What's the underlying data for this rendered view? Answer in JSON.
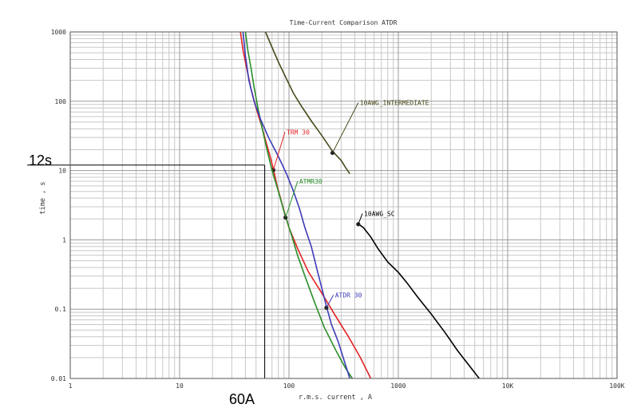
{
  "chart_data": {
    "type": "line",
    "title": "Time-Current Comparison ATDR",
    "xlabel": "r.m.s. current , A",
    "ylabel": "time , s",
    "x_scale": "log",
    "y_scale": "log",
    "xlim": [
      1,
      100000
    ],
    "ylim": [
      0.01,
      1000
    ],
    "grid": true,
    "x_tick_labels": [
      {
        "value": 1,
        "label": "1"
      },
      {
        "value": 10,
        "label": "10"
      },
      {
        "value": 100,
        "label": "100"
      },
      {
        "value": 1000,
        "label": "1000"
      },
      {
        "value": 10000,
        "label": "10K"
      },
      {
        "value": 100000,
        "label": "100K"
      }
    ],
    "y_tick_labels": [
      {
        "value": 1000,
        "label": "1000"
      },
      {
        "value": 100,
        "label": "100"
      },
      {
        "value": 10,
        "label": "10"
      },
      {
        "value": 1,
        "label": "1"
      },
      {
        "value": 0.1,
        "label": "0.1"
      },
      {
        "value": 0.01,
        "label": "0.01"
      }
    ],
    "series": [
      {
        "name": "10AWG_INTERMEDIATE",
        "color": "#4a4a1c",
        "points": [
          [
            61,
            1000
          ],
          [
            70,
            600
          ],
          [
            80,
            370
          ],
          [
            95,
            210
          ],
          [
            110,
            130
          ],
          [
            130,
            85
          ],
          [
            160,
            52
          ],
          [
            200,
            32
          ],
          [
            250,
            19
          ],
          [
            300,
            14
          ],
          [
            330,
            11
          ],
          [
            360,
            9
          ]
        ],
        "marker": [
          250,
          18
        ],
        "label_at": [
          430,
          95
        ],
        "label_point": [
          535,
          161
        ]
      },
      {
        "name": "TRM 30",
        "color": "#e52222",
        "points": [
          [
            36,
            1000
          ],
          [
            38,
            550
          ],
          [
            41,
            300
          ],
          [
            45,
            150
          ],
          [
            50,
            80
          ],
          [
            56,
            45
          ],
          [
            62,
            25
          ],
          [
            68,
            15
          ],
          [
            72,
            10.5
          ],
          [
            78,
            6
          ],
          [
            88,
            3
          ],
          [
            100,
            1.5
          ],
          [
            120,
            0.75
          ],
          [
            150,
            0.35
          ],
          [
            200,
            0.17
          ],
          [
            260,
            0.085
          ],
          [
            350,
            0.04
          ],
          [
            450,
            0.02
          ],
          [
            560,
            0.01
          ]
        ],
        "marker": [
          72,
          10.2
        ],
        "label_at": [
          92,
          36
        ],
        "label_point": [
          420,
          190
        ]
      },
      {
        "name": "ATMR30",
        "color": "#2b8f2b",
        "points": [
          [
            40,
            1000
          ],
          [
            42,
            550
          ],
          [
            45,
            300
          ],
          [
            48,
            160
          ],
          [
            52,
            80
          ],
          [
            57,
            40
          ],
          [
            63,
            20
          ],
          [
            70,
            10
          ],
          [
            80,
            5
          ],
          [
            92,
            2.3
          ],
          [
            105,
            1.2
          ],
          [
            120,
            0.6
          ],
          [
            140,
            0.3
          ],
          [
            170,
            0.13
          ],
          [
            210,
            0.055
          ],
          [
            270,
            0.025
          ],
          [
            330,
            0.014
          ],
          [
            380,
            0.01
          ]
        ],
        "marker": [
          93,
          2.1
        ],
        "label_at": [
          120,
          7
        ],
        "label_point": [
          405,
          248
        ]
      },
      {
        "name": "ATDR 30",
        "color": "#3c3cb8",
        "points": [
          [
            38,
            1000
          ],
          [
            40,
            450
          ],
          [
            43,
            200
          ],
          [
            48,
            100
          ],
          [
            55,
            55
          ],
          [
            65,
            30
          ],
          [
            80,
            16
          ],
          [
            95,
            9
          ],
          [
            110,
            5
          ],
          [
            125,
            2.8
          ],
          [
            140,
            1.5
          ],
          [
            160,
            0.8
          ],
          [
            180,
            0.38
          ],
          [
            200,
            0.2
          ],
          [
            220,
            0.11
          ],
          [
            245,
            0.06
          ],
          [
            280,
            0.035
          ],
          [
            320,
            0.018
          ],
          [
            360,
            0.01
          ]
        ],
        "marker": [
          220,
          0.105
        ],
        "label_at": [
          255,
          0.16
        ],
        "label_point": [
          460,
          364
        ]
      },
      {
        "name": "10AWG_SC",
        "color": "#000000",
        "points": [
          [
            430,
            1.7
          ],
          [
            480,
            1.5
          ],
          [
            560,
            1.1
          ],
          [
            650,
            0.75
          ],
          [
            800,
            0.48
          ],
          [
            1000,
            0.34
          ],
          [
            1200,
            0.24
          ],
          [
            1500,
            0.15
          ],
          [
            2000,
            0.085
          ],
          [
            2700,
            0.045
          ],
          [
            3500,
            0.025
          ],
          [
            4500,
            0.015
          ],
          [
            5500,
            0.01
          ]
        ],
        "marker": [
          430,
          1.68
        ],
        "label_at": [
          470,
          2.4
        ],
        "label_point": [
          480,
          258
        ]
      }
    ],
    "annotations": [
      {
        "text": "12s",
        "value": 12,
        "kind": "time-marker"
      },
      {
        "text": "60A",
        "value": 60,
        "kind": "current-marker"
      }
    ]
  }
}
